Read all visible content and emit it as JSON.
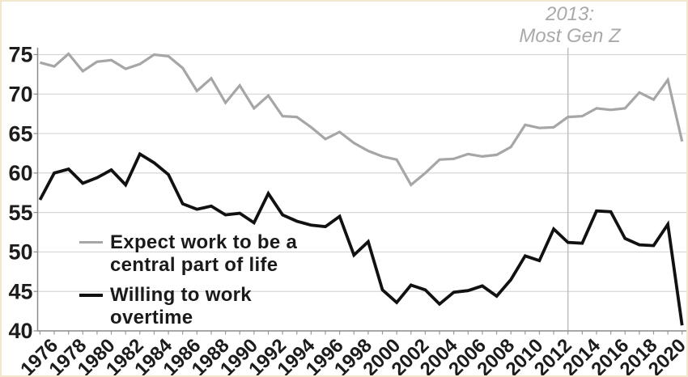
{
  "chart_data": {
    "type": "line",
    "years": [
      1976,
      1977,
      1978,
      1979,
      1980,
      1981,
      1982,
      1983,
      1984,
      1985,
      1986,
      1987,
      1988,
      1989,
      1990,
      1991,
      1992,
      1993,
      1994,
      1995,
      1996,
      1997,
      1998,
      1999,
      2000,
      2001,
      2002,
      2003,
      2004,
      2005,
      2006,
      2007,
      2008,
      2009,
      2010,
      2011,
      2012,
      2013,
      2014,
      2015,
      2016,
      2017,
      2018,
      2019,
      2020,
      2021
    ],
    "series": [
      {
        "name": "Expect work to be a central part of life",
        "color": "#a6a6a6",
        "stroke_width": 3.2,
        "values": [
          74.0,
          73.5,
          75.1,
          72.9,
          74.1,
          74.3,
          73.2,
          73.8,
          75.0,
          74.8,
          73.3,
          70.4,
          72.0,
          68.9,
          71.1,
          68.2,
          69.8,
          67.2,
          67.1,
          65.8,
          64.3,
          65.2,
          63.8,
          62.8,
          62.1,
          61.7,
          58.5,
          60.0,
          61.7,
          61.8,
          62.4,
          62.1,
          62.3,
          63.3,
          66.1,
          65.7,
          65.8,
          67.1,
          67.2,
          68.2,
          68.0,
          68.2,
          70.2,
          69.3,
          71.8,
          64.0
        ]
      },
      {
        "name": "Willing to work overtime",
        "color": "#111111",
        "stroke_width": 3.8,
        "values": [
          56.6,
          60.0,
          60.5,
          58.7,
          59.4,
          60.4,
          58.5,
          62.4,
          61.3,
          59.8,
          56.1,
          55.4,
          55.8,
          54.7,
          54.9,
          53.7,
          57.4,
          54.7,
          53.9,
          53.4,
          53.2,
          54.5,
          49.6,
          51.3,
          45.2,
          43.6,
          45.8,
          45.2,
          43.4,
          44.9,
          45.1,
          45.7,
          44.4,
          46.5,
          49.5,
          48.9,
          52.9,
          51.2,
          51.1,
          55.2,
          55.1,
          51.7,
          50.9,
          50.8,
          53.5,
          40.7
        ]
      }
    ],
    "ylim": [
      40,
      75
    ],
    "yticks": [
      40,
      45,
      50,
      55,
      60,
      65,
      70,
      75
    ],
    "xtick_label_years": [
      "1976",
      "1978",
      "1980",
      "1982",
      "1984",
      "1986",
      "1988",
      "1990",
      "1992",
      "1994",
      "1996",
      "1998",
      "2000",
      "2002",
      "2004",
      "2006",
      "2008",
      "2010",
      "2012",
      "2014",
      "2016",
      "2018",
      "2020"
    ],
    "grid": "horizontal",
    "legend_position": "inside-lower-left",
    "annotation": {
      "line1": "2013:",
      "line2": "Most Gen Z",
      "at_year": 2013
    }
  },
  "annotation": {
    "line1": "2013:",
    "line2": "Most Gen Z"
  },
  "legend": {
    "items": [
      {
        "label": "Expect work to be a central part of life",
        "color": "#a6a6a6"
      },
      {
        "label": "Willing to work overtime",
        "color": "#111111"
      }
    ]
  },
  "colors": {
    "grid": "#d6d6d6",
    "axis": "#8c8c8c",
    "tick": "#999999",
    "tick_label": "#1c1c1c",
    "annotation_text": "#a9a9a9",
    "reference_line": "#bdbdbd",
    "border": "#f2e6cc"
  }
}
